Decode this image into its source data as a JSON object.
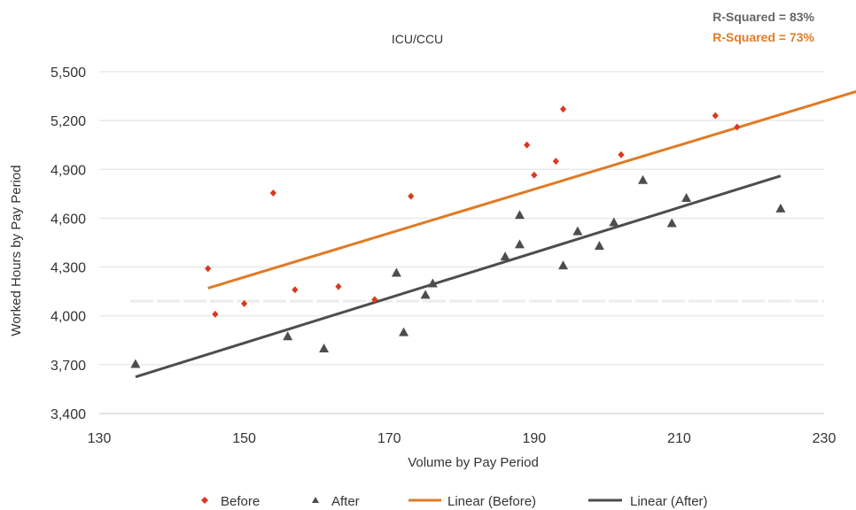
{
  "chart_data": {
    "type": "scatter",
    "title": "ICU/CCU",
    "xlabel": "Volume by Pay Period",
    "ylabel": "Worked Hours by Pay Period",
    "xlim": [
      130,
      230
    ],
    "ylim": [
      3400,
      5500
    ],
    "x_ticks": [
      "130",
      "150",
      "170",
      "190",
      "210",
      "230"
    ],
    "y_ticks": [
      "3,400",
      "3,700",
      "4,000",
      "4,300",
      "4,600",
      "4,900",
      "5,200",
      "5,500"
    ],
    "grid": "horizontal",
    "legend_position": "bottom",
    "r_squared": [
      {
        "text": "R-Squared = 83%",
        "color": "#666666"
      },
      {
        "text": "R-Squared = 73%",
        "color": "#E07B25"
      }
    ],
    "series": [
      {
        "name": "Before",
        "kind": "scatter",
        "marker": "diamond",
        "color": "#D93A1E",
        "points": [
          [
            145,
            4290
          ],
          [
            146,
            4010
          ],
          [
            150,
            4075
          ],
          [
            154,
            4755
          ],
          [
            157,
            4160
          ],
          [
            163,
            4180
          ],
          [
            168,
            4100
          ],
          [
            173,
            4735
          ],
          [
            189,
            5050
          ],
          [
            190,
            4865
          ],
          [
            193,
            4950
          ],
          [
            194,
            5270
          ],
          [
            202,
            4990
          ],
          [
            215,
            5230
          ],
          [
            218,
            5160
          ]
        ]
      },
      {
        "name": "After",
        "kind": "scatter",
        "marker": "triangle",
        "color": "#4D4D4D",
        "points": [
          [
            135,
            3705
          ],
          [
            156,
            3875
          ],
          [
            161,
            3800
          ],
          [
            171,
            4265
          ],
          [
            172,
            3900
          ],
          [
            175,
            4130
          ],
          [
            176,
            4200
          ],
          [
            186,
            4365
          ],
          [
            188,
            4440
          ],
          [
            188,
            4620
          ],
          [
            194,
            4310
          ],
          [
            196,
            4520
          ],
          [
            199,
            4430
          ],
          [
            201,
            4575
          ],
          [
            205,
            4835
          ],
          [
            209,
            4570
          ],
          [
            211,
            4725
          ],
          [
            224,
            4660
          ]
        ]
      },
      {
        "name": "Linear (Before)",
        "kind": "line",
        "color": "#E07B25",
        "points": [
          [
            145,
            4170
          ],
          [
            239,
            5440
          ]
        ]
      },
      {
        "name": "Linear (After)",
        "kind": "line",
        "color": "#4D4D4D",
        "points": [
          [
            135,
            3625
          ],
          [
            224,
            4860
          ]
        ]
      }
    ]
  }
}
